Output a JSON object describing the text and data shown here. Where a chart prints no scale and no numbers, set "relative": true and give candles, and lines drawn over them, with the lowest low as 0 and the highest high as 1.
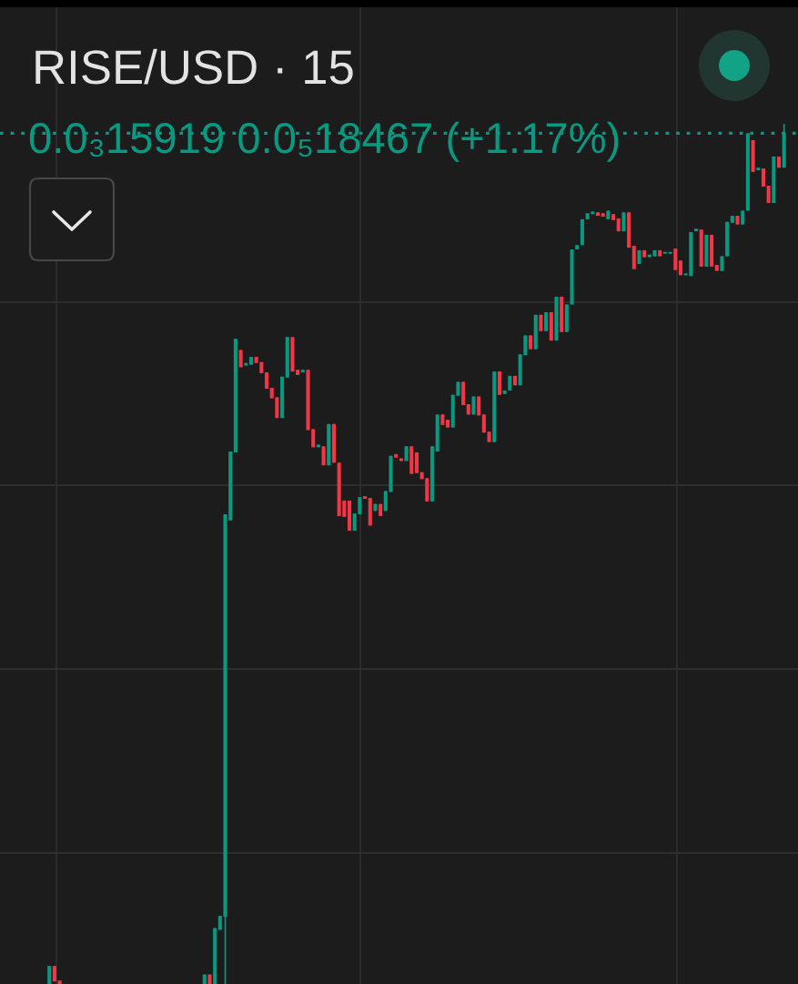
{
  "chart_data": {
    "type": "candlestick",
    "title": "RISE/USD · 15",
    "annotations": [
      "0.0₃15919 0.0₅18467 (+1.17%)"
    ],
    "relative": true,
    "grid": true,
    "ref_lines": [
      {
        "axis": "y",
        "value": 0.989,
        "color": "#089981",
        "line_style": "dotted"
      }
    ],
    "categories": [
      null,
      null,
      null,
      null,
      null,
      null,
      null,
      null,
      null,
      null,
      null,
      null,
      null,
      null,
      null,
      null,
      null,
      null,
      null,
      null,
      null,
      null,
      null,
      null,
      null,
      null,
      null,
      null,
      null,
      null,
      null,
      null,
      null,
      null,
      null,
      null,
      null,
      null,
      null,
      null,
      null,
      null,
      null,
      null,
      null,
      null,
      null,
      null,
      null,
      null,
      null,
      null,
      null,
      null,
      null,
      null,
      null,
      null,
      null,
      null,
      null,
      null,
      null,
      null,
      null,
      null,
      null,
      null,
      null,
      null,
      null,
      null,
      null,
      null,
      null,
      null,
      null,
      null,
      null,
      null,
      null,
      null,
      null,
      null,
      null,
      null,
      null,
      null,
      null,
      null,
      null,
      null,
      null,
      null,
      null,
      null,
      null,
      null,
      null,
      null,
      null,
      null,
      null,
      null,
      null,
      null,
      null,
      null,
      null,
      null,
      null,
      null,
      null,
      null,
      null,
      null,
      null,
      null,
      null,
      null,
      null,
      null,
      null,
      null,
      null,
      null,
      null,
      null,
      null,
      null,
      null,
      null,
      null,
      null,
      null,
      null,
      null,
      null,
      null,
      null,
      null,
      null,
      null
    ],
    "ohlc": [
      [
        0,
        0.021,
        0,
        0.021
      ],
      [
        0.021,
        0.021,
        0.003,
        0.003
      ],
      [
        0.004,
        0.004,
        0,
        0
      ],
      null,
      null,
      null,
      null,
      null,
      null,
      null,
      null,
      null,
      null,
      null,
      null,
      null,
      null,
      null,
      null,
      null,
      null,
      null,
      null,
      null,
      null,
      null,
      null,
      null,
      null,
      null,
      [
        0,
        0.011,
        0,
        0.011
      ],
      [
        0.011,
        0.011,
        0,
        0
      ],
      [
        0,
        0.065,
        0,
        0.065
      ],
      [
        0.063,
        0.079,
        0.063,
        0.079
      ],
      [
        0.078,
        0.546,
        0,
        0.546
      ],
      [
        0.539,
        0.619,
        0.539,
        0.619
      ],
      [
        0.618,
        0.75,
        0.618,
        0.75
      ],
      [
        0.737,
        0.737,
        0.717,
        0.717
      ],
      [
        0.719,
        0.722,
        0.719,
        0.722
      ],
      [
        0.72,
        0.729,
        0.72,
        0.729
      ],
      [
        0.729,
        0.729,
        0.722,
        0.722
      ],
      [
        0.723,
        0.723,
        0.71,
        0.71
      ],
      [
        0.711,
        0.711,
        0.692,
        0.692
      ],
      [
        0.693,
        0.693,
        0.681,
        0.681
      ],
      [
        0.682,
        0.682,
        0.658,
        0.658
      ],
      [
        0.658,
        0.706,
        0.658,
        0.706
      ],
      [
        0.705,
        0.752,
        0.705,
        0.752
      ],
      [
        0.752,
        0.752,
        0.712,
        0.712
      ],
      [
        0.714,
        0.714,
        0.708,
        0.708
      ],
      [
        0.711,
        0.714,
        0.711,
        0.714
      ],
      [
        0.714,
        0.714,
        0.644,
        0.644
      ],
      [
        0.645,
        0.645,
        0.624,
        0.624
      ],
      [
        0.624,
        0.627,
        0.624,
        0.627
      ],
      [
        0.625,
        0.625,
        0.603,
        0.603
      ],
      [
        0.603,
        0.651,
        0.603,
        0.651
      ],
      [
        0.651,
        0.651,
        0.606,
        0.606
      ],
      [
        0.606,
        0.606,
        0.544,
        0.544
      ],
      [
        0.562,
        0.562,
        0.543,
        0.543
      ],
      [
        0.562,
        0.562,
        0.527,
        0.527
      ],
      [
        0.527,
        0.547,
        0.527,
        0.547
      ],
      [
        0.546,
        0.566,
        0.546,
        0.566
      ],
      [
        0.567,
        0.567,
        0.564,
        0.564
      ],
      [
        0.565,
        0.565,
        0.533,
        0.533
      ],
      [
        0.55,
        0.558,
        0.55,
        0.558
      ],
      [
        0.558,
        0.558,
        0.544,
        0.544
      ],
      [
        0.55,
        0.573,
        0.55,
        0.573
      ],
      [
        0.572,
        0.614,
        0.572,
        0.614
      ],
      [
        0.616,
        0.616,
        0.612,
        0.612
      ],
      [
        0.611,
        0.611,
        0.608,
        0.608
      ],
      [
        0.608,
        0.625,
        0.608,
        0.625
      ],
      [
        0.625,
        0.625,
        0.593,
        0.593
      ],
      [
        0.618,
        0.618,
        0.594,
        0.594
      ],
      [
        0.595,
        0.595,
        0.587,
        0.587
      ],
      [
        0.588,
        0.588,
        0.561,
        0.561
      ],
      [
        0.561,
        0.625,
        0.561,
        0.625
      ],
      [
        0.619,
        0.662,
        0.619,
        0.662
      ],
      [
        0.662,
        0.662,
        0.65,
        0.65
      ],
      [
        0.656,
        0.656,
        0.647,
        0.647
      ],
      [
        0.647,
        0.685,
        0.647,
        0.685
      ],
      [
        0.684,
        0.7,
        0.684,
        0.7
      ],
      [
        0.7,
        0.7,
        0.673,
        0.673
      ],
      [
        0.674,
        0.674,
        0.662,
        0.662
      ],
      [
        0.662,
        0.683,
        0.662,
        0.683
      ],
      [
        0.683,
        0.683,
        0.661,
        0.661
      ],
      [
        0.662,
        0.662,
        0.641,
        0.641
      ],
      [
        0.642,
        0.642,
        0.63,
        0.63
      ],
      [
        0.63,
        0.712,
        0.63,
        0.712
      ],
      [
        0.712,
        0.712,
        0.685,
        0.685
      ],
      [
        0.686,
        0.69,
        0.686,
        0.69
      ],
      [
        0.69,
        0.707,
        0.69,
        0.707
      ],
      [
        0.707,
        0.707,
        0.696,
        0.696
      ],
      [
        0.696,
        0.732,
        0.696,
        0.732
      ],
      [
        0.731,
        0.754,
        0.731,
        0.754
      ],
      [
        0.754,
        0.754,
        0.738,
        0.738
      ],
      [
        0.738,
        0.778,
        0.738,
        0.778
      ],
      [
        0.778,
        0.778,
        0.759,
        0.759
      ],
      [
        0.759,
        0.781,
        0.759,
        0.781
      ],
      [
        0.781,
        0.781,
        0.748,
        0.748
      ],
      [
        0.748,
        0.799,
        0.748,
        0.799
      ],
      [
        0.799,
        0.799,
        0.758,
        0.758
      ],
      [
        0.758,
        0.79,
        0.758,
        0.79
      ],
      [
        0.79,
        0.854,
        0.79,
        0.854
      ],
      [
        0.854,
        0.859,
        0.854,
        0.859
      ],
      [
        0.859,
        0.889,
        0.859,
        0.889
      ],
      [
        0.889,
        0.896,
        0.889,
        0.896
      ],
      [
        0.895,
        0.898,
        0.895,
        0.898
      ],
      [
        0.897,
        0.897,
        0.893,
        0.893
      ],
      [
        0.896,
        0.896,
        0.892,
        0.892
      ],
      [
        0.889,
        0.899,
        0.889,
        0.899
      ],
      [
        0.895,
        0.895,
        0.888,
        0.888
      ],
      [
        0.89,
        0.89,
        0.875,
        0.875
      ],
      [
        0.875,
        0.897,
        0.875,
        0.897
      ],
      [
        0.897,
        0.897,
        0.856,
        0.856
      ],
      [
        0.858,
        0.858,
        0.831,
        0.831
      ],
      [
        0.837,
        0.853,
        0.837,
        0.853
      ],
      [
        0.853,
        0.853,
        0.845,
        0.845
      ],
      [
        0.845,
        0.848,
        0.845,
        0.848
      ],
      [
        0.846,
        0.853,
        0.846,
        0.853
      ],
      [
        0.853,
        0.853,
        0.846,
        0.846
      ],
      [
        0.849,
        0.851,
        0.849,
        0.851
      ],
      [
        0.849,
        0.851,
        0.849,
        0.851
      ],
      [
        0.855,
        0.855,
        0.83,
        0.83
      ],
      [
        0.841,
        0.841,
        0.824,
        0.824
      ],
      [
        0.824,
        0.826,
        0.824,
        0.826
      ],
      [
        0.823,
        0.874,
        0.823,
        0.874
      ],
      [
        0.875,
        0.878,
        0.875,
        0.878
      ],
      [
        0.877,
        0.877,
        0.834,
        0.834
      ],
      [
        0.834,
        0.871,
        0.834,
        0.871
      ],
      [
        0.871,
        0.871,
        0.834,
        0.834
      ],
      [
        0.836,
        0.836,
        0.829,
        0.829
      ],
      [
        0.829,
        0.846,
        0.829,
        0.846
      ],
      [
        0.846,
        0.886,
        0.846,
        0.886
      ],
      [
        0.885,
        0.893,
        0.885,
        0.893
      ],
      [
        0.893,
        0.893,
        0.883,
        0.883
      ],
      [
        0.883,
        0.899,
        0.883,
        0.899
      ],
      [
        0.899,
        0.989,
        0.899,
        0.989
      ],
      [
        0.981,
        0.981,
        0.944,
        0.944
      ],
      [
        0.946,
        0.949,
        0.946,
        0.949
      ],
      [
        0.948,
        0.948,
        0.927,
        0.927
      ],
      [
        0.928,
        0.928,
        0.908,
        0.908
      ],
      [
        0.908,
        0.962,
        0.908,
        0.962
      ],
      [
        0.962,
        0.962,
        0.949,
        0.949
      ],
      [
        0.949,
        1.0,
        0.949,
        0.989
      ]
    ],
    "colors": [
      "#089981",
      "#f23645",
      "#f23645",
      null,
      null,
      null,
      null,
      null,
      null,
      null,
      null,
      null,
      null,
      null,
      null,
      null,
      null,
      null,
      null,
      null,
      null,
      null,
      null,
      null,
      null,
      null,
      null,
      null,
      null,
      null,
      "#089981",
      "#f23645",
      "#089981",
      "#089981",
      "#089981",
      "#089981",
      "#089981",
      "#f23645",
      "#089981",
      "#089981",
      "#f23645",
      "#f23645",
      "#f23645",
      "#f23645",
      "#f23645",
      "#089981",
      "#089981",
      "#f23645",
      "#f23645",
      "#089981",
      "#f23645",
      "#f23645",
      "#089981",
      "#f23645",
      "#089981",
      "#f23645",
      "#f23645",
      "#f23645",
      "#f23645",
      "#089981",
      "#089981",
      "#f23645",
      "#f23645",
      "#089981",
      "#f23645",
      "#089981",
      "#089981",
      "#f23645",
      "#f23645",
      "#089981",
      "#f23645",
      "#f23645",
      "#f23645",
      "#f23645",
      "#089981",
      "#089981",
      "#f23645",
      "#f23645",
      "#089981",
      "#089981",
      "#f23645",
      "#f23645",
      "#089981",
      "#f23645",
      "#f23645",
      "#f23645",
      "#089981",
      "#f23645",
      "#089981",
      "#089981",
      "#f23645",
      "#089981",
      "#089981",
      "#f23645",
      "#089981",
      "#f23645",
      "#089981",
      "#f23645",
      "#089981",
      "#f23645",
      "#089981",
      "#089981",
      "#089981",
      "#089981",
      "#089981",
      "#089981",
      "#f23645",
      "#f23645",
      "#089981",
      "#f23645",
      "#f23645",
      "#089981",
      "#f23645",
      "#f23645",
      "#089981",
      "#f23645",
      "#089981",
      "#089981",
      "#f23645",
      "#089981",
      "#089981",
      "#f23645",
      "#f23645",
      "#089981",
      "#089981",
      "#089981",
      "#f23645",
      "#089981",
      "#f23645",
      "#f23645",
      "#089981",
      "#089981",
      "#089981",
      "#f23645",
      "#089981",
      "#089981",
      "#f23645",
      "#089981",
      "#f23645",
      "#f23645",
      "#089981",
      "#f23645",
      "#089981"
    ]
  }
}
